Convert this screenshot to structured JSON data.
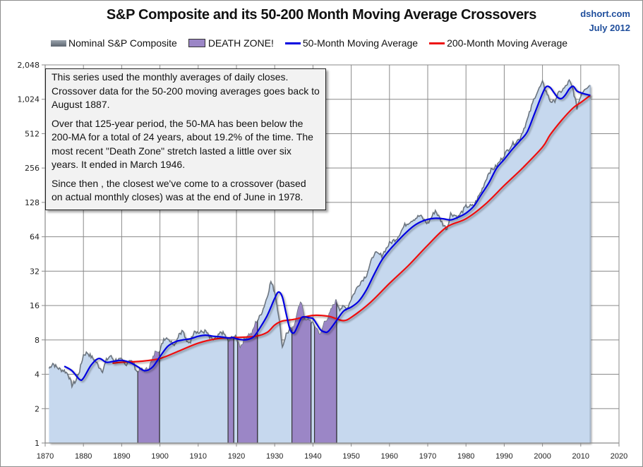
{
  "chart_data": {
    "type": "area",
    "title": "S&P Composite and its 50-200 Month Moving Average Crossovers",
    "source_label": "dshort.com",
    "date_label": "July 2012",
    "xlabel": "",
    "ylabel": "",
    "y_scale": "log2",
    "ylim": [
      1,
      2048
    ],
    "xlim": [
      1870,
      2020
    ],
    "grid": true,
    "legend_position": "top",
    "y_ticks": [
      {
        "value": 1,
        "label": "1"
      },
      {
        "value": 2,
        "label": "2"
      },
      {
        "value": 4,
        "label": "4"
      },
      {
        "value": 8,
        "label": "8"
      },
      {
        "value": 16,
        "label": "16"
      },
      {
        "value": 32,
        "label": "32"
      },
      {
        "value": 64,
        "label": "64"
      },
      {
        "value": 128,
        "label": "128"
      },
      {
        "value": 256,
        "label": "256"
      },
      {
        "value": 512,
        "label": "512"
      },
      {
        "value": 1024,
        "label": "1,024"
      },
      {
        "value": 2048,
        "label": "2,048"
      }
    ],
    "x_ticks": [
      1870,
      1880,
      1890,
      1900,
      1910,
      1920,
      1930,
      1940,
      1950,
      1960,
      1970,
      1980,
      1990,
      2000,
      2010,
      2020
    ],
    "legend": [
      {
        "name": "Nominal S&P Composite",
        "kind": "area",
        "color": "#6b747e"
      },
      {
        "name": "DEATH ZONE!",
        "kind": "zone",
        "color": "#9b86c6"
      },
      {
        "name": "50-Month Moving Average",
        "kind": "line",
        "color": "#0000e0"
      },
      {
        "name": "200-Month Moving Average",
        "kind": "line",
        "color": "#ee1111"
      }
    ],
    "series": [
      {
        "name": "Nominal S&P Composite",
        "x": [
          1871,
          1872,
          1873,
          1874,
          1875,
          1876,
          1877,
          1878,
          1879,
          1880,
          1881,
          1882,
          1883,
          1884,
          1885,
          1886,
          1887,
          1888,
          1889,
          1890,
          1891,
          1892,
          1893,
          1894,
          1895,
          1896,
          1897,
          1898,
          1899,
          1900,
          1901,
          1902,
          1903,
          1904,
          1905,
          1906,
          1907,
          1908,
          1909,
          1910,
          1911,
          1912,
          1913,
          1914,
          1915,
          1916,
          1917,
          1918,
          1919,
          1920,
          1921,
          1922,
          1923,
          1924,
          1925,
          1926,
          1927,
          1928,
          1929,
          1930,
          1931,
          1932,
          1933,
          1934,
          1935,
          1936,
          1937,
          1938,
          1939,
          1940,
          1941,
          1942,
          1943,
          1944,
          1945,
          1946,
          1947,
          1948,
          1949,
          1950,
          1952,
          1954,
          1956,
          1958,
          1960,
          1962,
          1964,
          1966,
          1968,
          1970,
          1972,
          1974,
          1975,
          1976,
          1978,
          1980,
          1982,
          1984,
          1986,
          1988,
          1990,
          1992,
          1994,
          1996,
          1998,
          2000,
          2001,
          2002,
          2003,
          2004,
          2006,
          2007,
          2008,
          2009,
          2010,
          2011,
          2012.5
        ],
        "values": [
          4.5,
          5.0,
          4.6,
          4.4,
          4.3,
          4.0,
          3.2,
          3.5,
          4.3,
          5.9,
          6.2,
          5.7,
          5.3,
          4.7,
          4.3,
          5.3,
          5.8,
          5.3,
          5.4,
          5.3,
          4.8,
          5.4,
          5.0,
          4.2,
          4.4,
          4.3,
          4.5,
          5.3,
          6.5,
          6.4,
          8.2,
          8.4,
          7.6,
          7.4,
          9.1,
          9.6,
          7.6,
          7.8,
          9.8,
          9.2,
          9.4,
          9.5,
          8.3,
          8.0,
          8.4,
          9.4,
          8.8,
          7.6,
          8.7,
          8.3,
          6.9,
          7.9,
          8.9,
          8.9,
          11.2,
          12.6,
          15.0,
          19.0,
          26.0,
          21.0,
          13.5,
          6.9,
          9.0,
          9.8,
          10.1,
          14.7,
          17.0,
          11.5,
          12.1,
          11.0,
          10.0,
          8.7,
          11.5,
          12.5,
          15.2,
          17.5,
          15.0,
          15.5,
          15.2,
          18.4,
          24.5,
          29.7,
          46.0,
          44.0,
          55.9,
          62.5,
          81.0,
          90.0,
          98.0,
          83.0,
          109.0,
          82.0,
          75.0,
          102.0,
          96.0,
          118.0,
          119.0,
          160.0,
          236.0,
          266.0,
          334.0,
          410.0,
          460.0,
          670.0,
          1085.0,
          1430.0,
          1190.0,
          990.0,
          965.0,
          1130.0,
          1310.0,
          1480.0,
          1240.0,
          860.0,
          1110.0,
          1280.0,
          1360.0
        ]
      },
      {
        "name": "50-Month Moving Average",
        "x": [
          1875,
          1877,
          1879,
          1880,
          1882,
          1884,
          1886,
          1888,
          1890,
          1892,
          1894,
          1896,
          1898,
          1900,
          1902,
          1904,
          1906,
          1908,
          1910,
          1912,
          1914,
          1916,
          1918,
          1919,
          1920,
          1922,
          1924,
          1925,
          1926,
          1928,
          1930,
          1931,
          1932,
          1933,
          1934,
          1935,
          1936,
          1937,
          1938,
          1939,
          1940,
          1941,
          1942,
          1943,
          1944,
          1946,
          1948,
          1950,
          1952,
          1954,
          1956,
          1958,
          1960,
          1962,
          1964,
          1966,
          1968,
          1970,
          1972,
          1974,
          1976,
          1978,
          1980,
          1982,
          1984,
          1986,
          1988,
          1990,
          1992,
          1994,
          1996,
          1998,
          2000,
          2001,
          2002,
          2003,
          2004,
          2005,
          2006,
          2007,
          2008,
          2009,
          2010,
          2011,
          2012.5
        ],
        "values": [
          4.7,
          4.3,
          3.6,
          3.7,
          4.8,
          5.5,
          5.1,
          5.2,
          5.3,
          5.1,
          4.7,
          4.3,
          4.6,
          5.7,
          7.0,
          7.7,
          8.0,
          8.2,
          8.6,
          8.8,
          8.6,
          8.5,
          8.3,
          8.4,
          8.2,
          8.0,
          8.3,
          8.9,
          10.0,
          13.0,
          18.5,
          21.0,
          19.0,
          13.5,
          9.9,
          9.2,
          10.6,
          12.5,
          12.7,
          12.5,
          12.3,
          11.0,
          9.8,
          9.4,
          9.5,
          11.6,
          14.3,
          15.5,
          17.5,
          22.0,
          30.0,
          40.0,
          49.0,
          58.0,
          68.0,
          78.0,
          86.0,
          91.0,
          93.0,
          92.0,
          90.0,
          95.0,
          103.0,
          118.0,
          150.0,
          190.0,
          255.0,
          305.0,
          370.0,
          440.0,
          530.0,
          780.0,
          1150.0,
          1320.0,
          1300.0,
          1170.0,
          1060.0,
          1040.0,
          1120.0,
          1260.0,
          1330.0,
          1210.0,
          1170.0,
          1140.0,
          1110.0
        ]
      },
      {
        "name": "200-Month Moving Average",
        "x": [
          1887.6,
          1890,
          1895,
          1900,
          1905,
          1910,
          1915,
          1920,
          1925,
          1928,
          1930,
          1932,
          1935,
          1940,
          1944,
          1946,
          1948,
          1950,
          1955,
          1960,
          1965,
          1970,
          1975,
          1980,
          1985,
          1990,
          1995,
          2000,
          2002,
          2005,
          2008,
          2010,
          2012.5
        ],
        "values": [
          5.0,
          5.1,
          5.2,
          5.5,
          6.4,
          7.5,
          8.2,
          8.4,
          8.6,
          9.3,
          10.8,
          11.7,
          12.1,
          13.1,
          12.9,
          12.3,
          11.8,
          12.6,
          17.0,
          25.0,
          36.0,
          54.0,
          78.0,
          92.0,
          123.0,
          180.0,
          260.0,
          390.0,
          500.0,
          670.0,
          860.0,
          960.0,
          1110.0
        ]
      }
    ],
    "death_zones": [
      {
        "start": 1894.2,
        "end": 1899.9
      },
      {
        "start": 1917.8,
        "end": 1919.3
      },
      {
        "start": 1920.3,
        "end": 1925.5
      },
      {
        "start": 1934.5,
        "end": 1939.5
      },
      {
        "start": 1940.4,
        "end": 1946.2
      }
    ]
  },
  "annotation": {
    "paragraphs": [
      "This series used the monthly  averages of daily closes. Crossover data for the 50-200 moving averages goes back to August 1887.",
      "Over that 125-year period, the 50-MA has been below the 200-MA for a total of 24 years, about 19.2% of the time. The most recent \"Death Zone\" stretch lasted a little over six years. It ended in March 1946.",
      "Since then , the closest we've come to a crossover (based on actual monthly  closes) was at the end of June in 1978."
    ]
  }
}
